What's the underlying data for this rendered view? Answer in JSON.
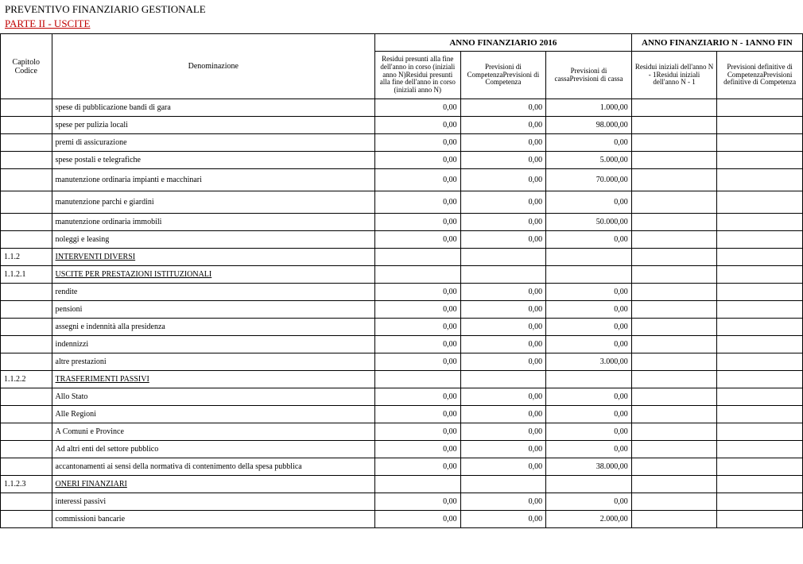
{
  "titles": {
    "main": "PREVENTIVO FINANZIARIO GESTIONALE",
    "sub": "PARTE II - USCITE"
  },
  "headers": {
    "year_current": "ANNO FINANZIARIO 2016",
    "year_prev": "ANNO FINANZIARIO N - 1ANNO FIN",
    "capitolo": "Capitolo Codice",
    "denominazione": "Denominazione",
    "col1": "Residui presunti alla fine dell'anno in corso (iniziali anno N)Residui presunti alla fine dell'anno in corso (iniziali anno N)",
    "col2": "Previsioni di CompetenzaPrevisioni di Competenza",
    "col3": "Previsioni di cassaPrevisioni di cassa",
    "col4": "Residui iniziali dell'anno N - 1Residui iniziali dell'anno N - 1",
    "col5": "Previsioni definitive di CompetenzaPrevisioni definitive di Competenza"
  },
  "rows": [
    {
      "code": "",
      "desc": "spese di pubblicazione bandi di gara",
      "v1": "0,00",
      "v2": "0,00",
      "v3": "1.000,00",
      "v4": "",
      "v5": ""
    },
    {
      "code": "",
      "desc": "spese per pulizia locali",
      "v1": "0,00",
      "v2": "0,00",
      "v3": "98.000,00",
      "v4": "",
      "v5": ""
    },
    {
      "code": "",
      "desc": "premi di assicurazione",
      "v1": "0,00",
      "v2": "0,00",
      "v3": "0,00",
      "v4": "",
      "v5": ""
    },
    {
      "code": "",
      "desc": "spese postali e telegrafiche",
      "v1": "0,00",
      "v2": "0,00",
      "v3": "5.000,00",
      "v4": "",
      "v5": ""
    },
    {
      "code": "",
      "desc": "manutenzione ordinaria impianti e macchinari",
      "v1": "0,00",
      "v2": "0,00",
      "v3": "70.000,00",
      "v4": "",
      "v5": "",
      "tall": true
    },
    {
      "code": "",
      "desc": "manutenzione parchi e giardini",
      "v1": "0,00",
      "v2": "0,00",
      "v3": "0,00",
      "v4": "",
      "v5": "",
      "tall": true
    },
    {
      "code": "",
      "desc": "manutenzione ordinaria immobili",
      "v1": "0,00",
      "v2": "0,00",
      "v3": "50.000,00",
      "v4": "",
      "v5": ""
    },
    {
      "code": "",
      "desc": "noleggi e leasing",
      "v1": "0,00",
      "v2": "0,00",
      "v3": "0,00",
      "v4": "",
      "v5": ""
    },
    {
      "code": "1.1.2",
      "desc": "INTERVENTI DIVERSI",
      "section": true
    },
    {
      "code": "1.1.2.1",
      "desc": "USCITE PER PRESTAZIONI ISTITUZIONALI",
      "section": true
    },
    {
      "code": "",
      "desc": "rendite",
      "v1": "0,00",
      "v2": "0,00",
      "v3": "0,00",
      "v4": "",
      "v5": ""
    },
    {
      "code": "",
      "desc": "pensioni",
      "v1": "0,00",
      "v2": "0,00",
      "v3": "0,00",
      "v4": "",
      "v5": ""
    },
    {
      "code": "",
      "desc": "assegni e indennità alla presidenza",
      "v1": "0,00",
      "v2": "0,00",
      "v3": "0,00",
      "v4": "",
      "v5": ""
    },
    {
      "code": "",
      "desc": "indennizzi",
      "v1": "0,00",
      "v2": "0,00",
      "v3": "0,00",
      "v4": "",
      "v5": ""
    },
    {
      "code": "",
      "desc": "altre prestazioni",
      "v1": "0,00",
      "v2": "0,00",
      "v3": "3.000,00",
      "v4": "",
      "v5": ""
    },
    {
      "code": "1.1.2.2",
      "desc": "TRASFERIMENTI PASSIVI",
      "section": true
    },
    {
      "code": "",
      "desc": "Allo Stato",
      "v1": "0,00",
      "v2": "0,00",
      "v3": "0,00",
      "v4": "",
      "v5": ""
    },
    {
      "code": "",
      "desc": "Alle Regioni",
      "v1": "0,00",
      "v2": "0,00",
      "v3": "0,00",
      "v4": "",
      "v5": ""
    },
    {
      "code": "",
      "desc": "A Comuni e Province",
      "v1": "0,00",
      "v2": "0,00",
      "v3": "0,00",
      "v4": "",
      "v5": ""
    },
    {
      "code": "",
      "desc": "Ad altri enti del settore pubblico",
      "v1": "0,00",
      "v2": "0,00",
      "v3": "0,00",
      "v4": "",
      "v5": ""
    },
    {
      "code": "",
      "desc": "accantonamenti ai sensi della normativa di contenimento della spesa pubblica",
      "v1": "0,00",
      "v2": "0,00",
      "v3": "38.000,00",
      "v4": "",
      "v5": ""
    },
    {
      "code": "1.1.2.3",
      "desc": "ONERI  FINANZIARI",
      "section": true
    },
    {
      "code": "",
      "desc": "interessi passivi",
      "v1": "0,00",
      "v2": "0,00",
      "v3": "0,00",
      "v4": "",
      "v5": ""
    },
    {
      "code": "",
      "desc": "commissioni bancarie",
      "v1": "0,00",
      "v2": "0,00",
      "v3": "2.000,00",
      "v4": "",
      "v5": ""
    }
  ]
}
